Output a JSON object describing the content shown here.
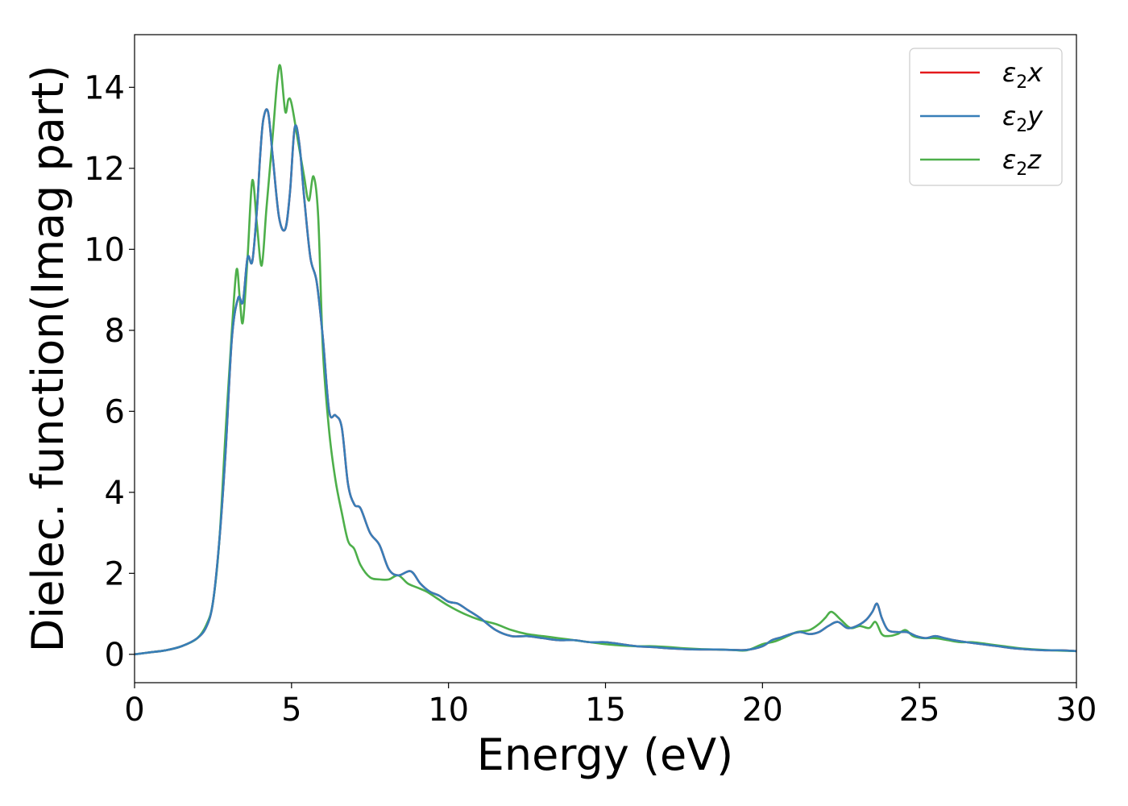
{
  "chart_data": {
    "type": "line",
    "title": "",
    "xlabel": "Energy (eV)",
    "ylabel": "Dielec. function(Imag part)",
    "xlim": [
      0,
      30
    ],
    "ylim": [
      -0.7,
      15.3
    ],
    "xticks": [
      "0",
      "5",
      "10",
      "15",
      "20",
      "25",
      "30"
    ],
    "yticks": [
      "0",
      "2",
      "4",
      "6",
      "8",
      "10",
      "12",
      "14"
    ],
    "grid": false,
    "legend_position": "top-right",
    "series": [
      {
        "name": "ε₂x",
        "legend_base": "ε",
        "legend_sub": "2",
        "legend_var": "x",
        "color": "#e41a1c",
        "x": [
          0,
          0.5,
          1.0,
          1.5,
          2.0,
          2.3,
          2.5,
          2.7,
          2.9,
          3.1,
          3.3,
          3.45,
          3.6,
          3.75,
          3.9,
          4.0,
          4.1,
          4.25,
          4.4,
          4.6,
          4.8,
          4.95,
          5.1,
          5.25,
          5.4,
          5.6,
          5.8,
          6.0,
          6.2,
          6.4,
          6.6,
          6.8,
          7.0,
          7.2,
          7.5,
          7.8,
          8.1,
          8.4,
          8.8,
          9.1,
          9.4,
          9.7,
          10.0,
          10.3,
          10.6,
          11.0,
          11.5,
          12.0,
          12.5,
          13.0,
          13.5,
          14.0,
          14.5,
          15.0,
          15.5,
          16.0,
          16.5,
          17.0,
          17.5,
          18.0,
          18.5,
          19.0,
          19.5,
          20.0,
          20.3,
          20.6,
          20.9,
          21.2,
          21.5,
          21.8,
          22.1,
          22.4,
          22.7,
          23.0,
          23.3,
          23.5,
          23.65,
          23.8,
          24.0,
          24.3,
          24.6,
          24.9,
          25.2,
          25.5,
          25.8,
          26.1,
          26.5,
          27.0,
          27.5,
          28.0,
          28.5,
          29.0,
          29.5,
          30.0
        ],
        "y": [
          0.0,
          0.05,
          0.1,
          0.2,
          0.4,
          0.7,
          1.3,
          2.8,
          5.0,
          7.8,
          8.8,
          8.7,
          9.8,
          9.7,
          11.0,
          12.3,
          13.2,
          13.4,
          12.3,
          10.8,
          10.5,
          11.4,
          13.0,
          12.6,
          11.3,
          9.8,
          9.2,
          7.8,
          6.0,
          5.9,
          5.6,
          4.2,
          3.7,
          3.6,
          3.0,
          2.7,
          2.1,
          1.95,
          2.05,
          1.75,
          1.55,
          1.45,
          1.3,
          1.25,
          1.1,
          0.9,
          0.6,
          0.45,
          0.45,
          0.4,
          0.35,
          0.35,
          0.3,
          0.3,
          0.25,
          0.2,
          0.18,
          0.15,
          0.13,
          0.12,
          0.12,
          0.11,
          0.11,
          0.2,
          0.35,
          0.42,
          0.5,
          0.55,
          0.5,
          0.55,
          0.7,
          0.8,
          0.65,
          0.7,
          0.85,
          1.05,
          1.25,
          0.9,
          0.6,
          0.55,
          0.55,
          0.45,
          0.4,
          0.45,
          0.4,
          0.35,
          0.3,
          0.25,
          0.2,
          0.15,
          0.12,
          0.1,
          0.1,
          0.08
        ]
      },
      {
        "name": "ε₂y",
        "legend_base": "ε",
        "legend_sub": "2",
        "legend_var": "y",
        "color": "#377eb8",
        "x": [
          0,
          0.5,
          1.0,
          1.5,
          2.0,
          2.3,
          2.5,
          2.7,
          2.9,
          3.1,
          3.3,
          3.45,
          3.6,
          3.75,
          3.9,
          4.0,
          4.1,
          4.25,
          4.4,
          4.6,
          4.8,
          4.95,
          5.1,
          5.25,
          5.4,
          5.6,
          5.8,
          6.0,
          6.2,
          6.4,
          6.6,
          6.8,
          7.0,
          7.2,
          7.5,
          7.8,
          8.1,
          8.4,
          8.8,
          9.1,
          9.4,
          9.7,
          10.0,
          10.3,
          10.6,
          11.0,
          11.5,
          12.0,
          12.5,
          13.0,
          13.5,
          14.0,
          14.5,
          15.0,
          15.5,
          16.0,
          16.5,
          17.0,
          17.5,
          18.0,
          18.5,
          19.0,
          19.5,
          20.0,
          20.3,
          20.6,
          20.9,
          21.2,
          21.5,
          21.8,
          22.1,
          22.4,
          22.7,
          23.0,
          23.3,
          23.5,
          23.65,
          23.8,
          24.0,
          24.3,
          24.6,
          24.9,
          25.2,
          25.5,
          25.8,
          26.1,
          26.5,
          27.0,
          27.5,
          28.0,
          28.5,
          29.0,
          29.5,
          30.0
        ],
        "y": [
          0.0,
          0.05,
          0.1,
          0.2,
          0.4,
          0.7,
          1.3,
          2.8,
          5.0,
          7.8,
          8.8,
          8.7,
          9.8,
          9.7,
          11.0,
          12.3,
          13.2,
          13.4,
          12.3,
          10.8,
          10.5,
          11.4,
          13.0,
          12.6,
          11.3,
          9.8,
          9.2,
          7.8,
          6.0,
          5.9,
          5.6,
          4.2,
          3.7,
          3.6,
          3.0,
          2.7,
          2.1,
          1.95,
          2.05,
          1.75,
          1.55,
          1.45,
          1.3,
          1.25,
          1.1,
          0.9,
          0.6,
          0.45,
          0.45,
          0.4,
          0.35,
          0.35,
          0.3,
          0.3,
          0.25,
          0.2,
          0.18,
          0.15,
          0.13,
          0.12,
          0.12,
          0.11,
          0.11,
          0.2,
          0.35,
          0.42,
          0.5,
          0.55,
          0.5,
          0.55,
          0.7,
          0.8,
          0.65,
          0.7,
          0.85,
          1.05,
          1.25,
          0.9,
          0.6,
          0.55,
          0.55,
          0.45,
          0.4,
          0.45,
          0.4,
          0.35,
          0.3,
          0.25,
          0.2,
          0.15,
          0.12,
          0.1,
          0.1,
          0.08
        ]
      },
      {
        "name": "ε₂z",
        "legend_base": "ε",
        "legend_sub": "2",
        "legend_var": "z",
        "color": "#4daf4a",
        "x": [
          0,
          0.5,
          1.0,
          1.5,
          2.0,
          2.3,
          2.5,
          2.7,
          2.9,
          3.1,
          3.25,
          3.35,
          3.45,
          3.6,
          3.75,
          3.9,
          4.05,
          4.2,
          4.4,
          4.55,
          4.65,
          4.8,
          4.9,
          5.0,
          5.2,
          5.4,
          5.55,
          5.7,
          5.85,
          6.0,
          6.2,
          6.4,
          6.6,
          6.8,
          7.0,
          7.2,
          7.5,
          7.8,
          8.1,
          8.4,
          8.7,
          9.0,
          9.3,
          9.6,
          10.0,
          10.5,
          11.0,
          11.5,
          12.0,
          12.5,
          13.0,
          13.5,
          14.0,
          14.5,
          15.0,
          15.5,
          16.0,
          16.5,
          17.0,
          17.5,
          18.0,
          18.5,
          19.0,
          19.5,
          20.0,
          20.4,
          20.8,
          21.1,
          21.5,
          21.8,
          22.0,
          22.2,
          22.5,
          22.8,
          23.1,
          23.4,
          23.6,
          23.8,
          24.0,
          24.3,
          24.55,
          24.8,
          25.1,
          25.5,
          25.9,
          26.3,
          26.7,
          27.2,
          27.7,
          28.2,
          28.7,
          29.2,
          30.0
        ],
        "y": [
          0.0,
          0.05,
          0.1,
          0.2,
          0.4,
          0.75,
          1.3,
          2.8,
          5.5,
          8.0,
          9.5,
          8.8,
          8.2,
          9.8,
          11.7,
          10.6,
          9.6,
          11.0,
          12.8,
          14.2,
          14.5,
          13.4,
          13.7,
          13.6,
          12.7,
          11.8,
          11.2,
          11.8,
          10.8,
          7.5,
          5.5,
          4.3,
          3.5,
          2.8,
          2.6,
          2.2,
          1.9,
          1.85,
          1.85,
          1.95,
          1.75,
          1.65,
          1.55,
          1.4,
          1.2,
          1.0,
          0.85,
          0.75,
          0.6,
          0.5,
          0.45,
          0.4,
          0.35,
          0.3,
          0.25,
          0.22,
          0.2,
          0.2,
          0.18,
          0.15,
          0.13,
          0.12,
          0.11,
          0.1,
          0.25,
          0.32,
          0.45,
          0.55,
          0.6,
          0.75,
          0.9,
          1.05,
          0.85,
          0.65,
          0.7,
          0.65,
          0.8,
          0.5,
          0.45,
          0.5,
          0.6,
          0.45,
          0.4,
          0.4,
          0.35,
          0.3,
          0.3,
          0.25,
          0.2,
          0.15,
          0.12,
          0.1,
          0.08
        ]
      }
    ]
  }
}
